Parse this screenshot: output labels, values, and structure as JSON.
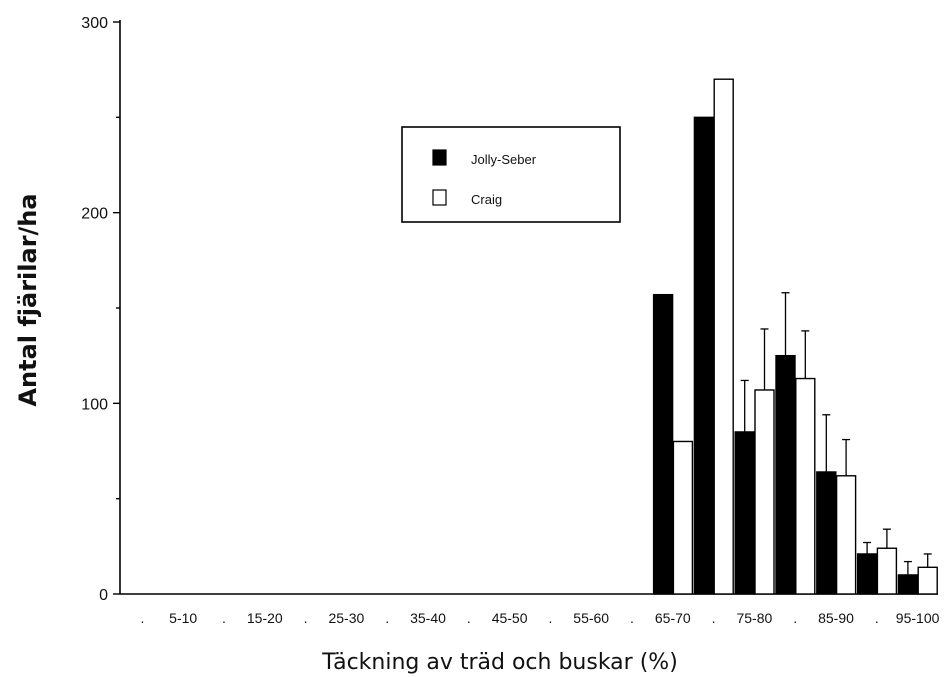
{
  "chart_data": {
    "type": "bar",
    "xlabel": "Täckning av träd och buskar (%)",
    "ylabel": "Antal fjärilar/ha",
    "ylim": [
      0,
      300
    ],
    "yticks": [
      "0",
      "100",
      "200",
      "300"
    ],
    "bin_labels": [
      ".",
      "5-10",
      ".",
      "15-20",
      ".",
      "25-30",
      ".",
      "35-40",
      ".",
      "45-50",
      ".",
      "55-60",
      ".",
      "65-70",
      ".",
      "75-80",
      ".",
      "85-90",
      ".",
      "95-100"
    ],
    "legend": {
      "position": "top-center",
      "entries": [
        "Jolly-Seber",
        "Craig"
      ]
    },
    "series": [
      {
        "name": "Jolly-Seber",
        "color": "#000000",
        "values": [
          0,
          0,
          0,
          0,
          0,
          0,
          0,
          0,
          0,
          0,
          0,
          0,
          0,
          157,
          250,
          85,
          125,
          64,
          21,
          10
        ],
        "errors": [
          null,
          null,
          null,
          null,
          null,
          null,
          null,
          null,
          null,
          null,
          null,
          null,
          null,
          null,
          null,
          27,
          33,
          30,
          6,
          7
        ]
      },
      {
        "name": "Craig",
        "color": "#ffffff",
        "values": [
          0,
          0,
          0,
          0,
          0,
          0,
          0,
          0,
          0,
          0,
          0,
          0,
          0,
          80,
          270,
          107,
          113,
          62,
          24,
          14
        ],
        "errors": [
          null,
          null,
          null,
          null,
          null,
          null,
          null,
          null,
          null,
          null,
          null,
          null,
          null,
          null,
          null,
          32,
          25,
          19,
          10,
          7
        ]
      }
    ]
  }
}
